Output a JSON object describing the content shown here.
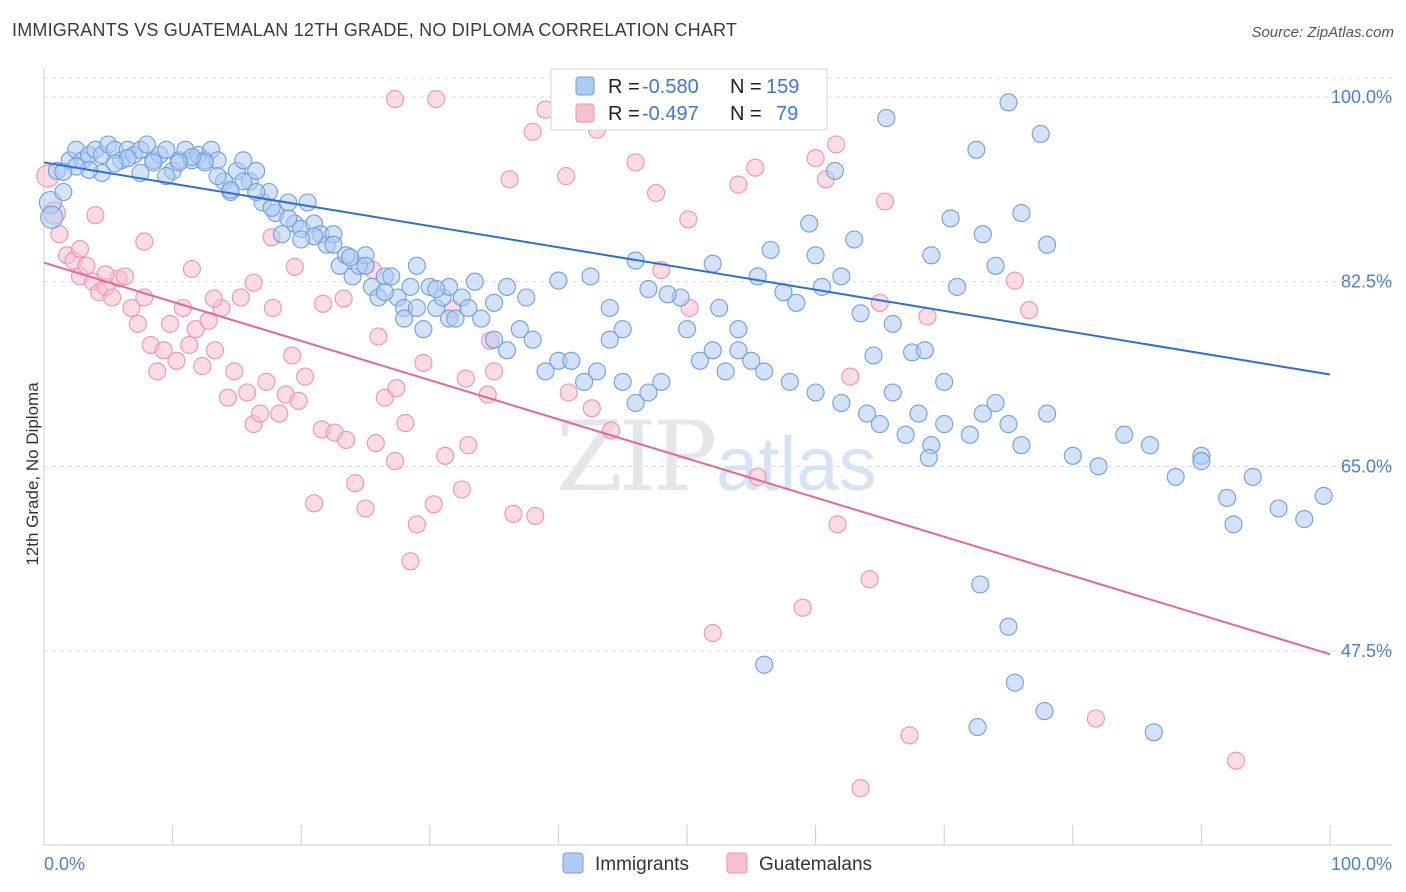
{
  "title": "IMMIGRANTS VS GUATEMALAN 12TH GRADE, NO DIPLOMA CORRELATION CHART",
  "source": "Source: ZipAtlas.com",
  "watermark": {
    "zip": "ZIP",
    "atlas": "atlas"
  },
  "colors": {
    "immigrants_fill": "#aecbf2",
    "immigrants_stroke": "#6f9fdc",
    "immigrants_line": "#2f6fd0",
    "guatemalans_fill": "#f8bfd0",
    "guatemalans_stroke": "#ec93b0",
    "guatemalans_line": "#e06a94",
    "grid": "#d6dbe3"
  },
  "chart_data": {
    "type": "scatter",
    "title": "IMMIGRANTS VS GUATEMALAN 12TH GRADE, NO DIPLOMA CORRELATION CHART",
    "xlabel": "",
    "ylabel": "12th Grade, No Diploma",
    "xlim": [
      0,
      100
    ],
    "ylim": [
      30,
      100
    ],
    "x_tick_labels": [
      "0.0%",
      "100.0%"
    ],
    "y_ticks": [
      47.5,
      65.0,
      82.5,
      100.0
    ],
    "y_tick_labels": [
      "47.5%",
      "65.0%",
      "82.5%",
      "100.0%"
    ],
    "grid": true,
    "legend": {
      "placement": "top-center",
      "entries": [
        {
          "r_label": "R =",
          "r_value": "-0.580",
          "n_label": "N =",
          "n_value": "159"
        },
        {
          "r_label": "R =",
          "r_value": "-0.497",
          "n_label": "N =",
          "n_value": "79"
        }
      ]
    },
    "series": [
      {
        "name": "Immigrants",
        "trend": {
          "x": [
            0,
            100
          ],
          "y": [
            93.8,
            73.7
          ]
        },
        "points": [
          [
            0.5,
            90
          ],
          [
            1,
            93
          ],
          [
            1.5,
            91
          ],
          [
            2,
            94
          ],
          [
            2.5,
            95
          ],
          [
            3,
            94
          ],
          [
            3.5,
            94.5
          ],
          [
            4,
            95
          ],
          [
            4.5,
            94.5
          ],
          [
            5,
            95.5
          ],
          [
            5.5,
            95
          ],
          [
            6,
            94
          ],
          [
            6.5,
            95
          ],
          [
            7,
            94.5
          ],
          [
            7.5,
            95
          ],
          [
            8,
            95.5
          ],
          [
            8.5,
            94
          ],
          [
            9,
            94.5
          ],
          [
            9.5,
            95
          ],
          [
            10,
            93
          ],
          [
            10.5,
            94
          ],
          [
            11,
            95
          ],
          [
            11.5,
            94
          ],
          [
            12,
            94.5
          ],
          [
            12.5,
            94
          ],
          [
            13,
            95
          ],
          [
            13.5,
            94
          ],
          [
            14,
            92
          ],
          [
            14.5,
            91
          ],
          [
            15,
            93
          ],
          [
            15.5,
            94
          ],
          [
            16,
            92
          ],
          [
            16.5,
            93
          ],
          [
            17,
            90
          ],
          [
            17.5,
            91
          ],
          [
            18,
            89
          ],
          [
            18.5,
            87
          ],
          [
            19,
            90
          ],
          [
            19.5,
            88
          ],
          [
            20,
            87.5
          ],
          [
            20.5,
            90
          ],
          [
            21,
            88
          ],
          [
            21.5,
            87
          ],
          [
            22,
            86
          ],
          [
            22.5,
            87
          ],
          [
            23,
            84
          ],
          [
            23.5,
            85
          ],
          [
            24,
            83
          ],
          [
            24.5,
            84
          ],
          [
            25,
            85
          ],
          [
            25.5,
            82
          ],
          [
            26,
            81
          ],
          [
            26.5,
            83
          ],
          [
            27,
            83
          ],
          [
            27.5,
            81
          ],
          [
            28,
            80
          ],
          [
            28.5,
            82
          ],
          [
            29,
            80
          ],
          [
            29.5,
            78
          ],
          [
            30,
            82
          ],
          [
            30.5,
            80
          ],
          [
            31,
            81
          ],
          [
            31.5,
            79
          ],
          [
            32,
            79
          ],
          [
            32.5,
            81
          ],
          [
            33,
            80
          ],
          [
            34,
            79
          ],
          [
            35,
            77
          ],
          [
            36,
            76
          ],
          [
            37,
            78
          ],
          [
            38,
            77
          ],
          [
            39,
            74
          ],
          [
            40,
            75
          ],
          [
            41,
            75
          ],
          [
            42,
            73
          ],
          [
            43,
            74
          ],
          [
            44,
            77
          ],
          [
            45,
            73
          ],
          [
            46,
            71
          ],
          [
            47,
            72
          ],
          [
            48,
            73
          ],
          [
            50,
            78
          ],
          [
            51,
            75
          ],
          [
            52,
            76
          ],
          [
            53,
            74
          ],
          [
            54,
            76
          ],
          [
            55,
            75
          ],
          [
            56,
            74
          ],
          [
            58,
            73
          ],
          [
            60,
            72
          ],
          [
            62,
            71
          ],
          [
            64,
            70
          ],
          [
            65,
            69
          ],
          [
            66,
            72
          ],
          [
            67,
            68
          ],
          [
            68,
            70
          ],
          [
            69,
            67
          ],
          [
            70,
            69
          ],
          [
            72,
            68
          ],
          [
            73,
            70
          ],
          [
            74,
            71
          ],
          [
            75,
            69
          ],
          [
            76,
            67
          ],
          [
            78,
            70
          ],
          [
            80,
            66
          ],
          [
            82,
            65
          ],
          [
            84,
            68
          ],
          [
            86,
            67
          ],
          [
            88,
            64
          ],
          [
            90,
            66
          ],
          [
            92,
            62
          ],
          [
            94,
            64
          ],
          [
            96,
            61
          ],
          [
            98,
            60
          ],
          [
            99.5,
            62.2
          ],
          [
            61.5,
            93
          ],
          [
            65.5,
            98
          ],
          [
            70.5,
            88.5
          ],
          [
            72.5,
            95
          ],
          [
            75,
            99.5
          ],
          [
            77.5,
            96.5
          ],
          [
            73,
            87
          ],
          [
            76,
            89
          ],
          [
            58.5,
            80.5
          ],
          [
            60,
            85
          ],
          [
            56.5,
            85.5
          ],
          [
            59.5,
            88
          ],
          [
            63,
            86.5
          ],
          [
            62,
            83
          ],
          [
            64.5,
            75.5
          ],
          [
            67.5,
            75.8
          ],
          [
            69,
            85
          ],
          [
            71,
            82
          ],
          [
            74,
            84
          ],
          [
            78,
            86
          ],
          [
            68.5,
            76
          ],
          [
            70,
            73
          ],
          [
            66,
            78.5
          ],
          [
            63.5,
            79.5
          ],
          [
            60.5,
            82
          ],
          [
            57.5,
            81.5
          ],
          [
            55.5,
            83
          ],
          [
            54,
            78
          ],
          [
            52.5,
            80
          ],
          [
            52,
            84.2
          ],
          [
            49.5,
            81
          ],
          [
            48.5,
            81.3
          ],
          [
            47,
            81.8
          ],
          [
            46,
            84.5
          ],
          [
            45,
            78
          ],
          [
            44,
            80
          ],
          [
            42.5,
            83
          ],
          [
            40,
            82.6
          ],
          [
            37.5,
            81
          ],
          [
            36,
            82
          ],
          [
            35,
            80.5
          ],
          [
            33.5,
            82.5
          ],
          [
            31.5,
            82
          ],
          [
            30.5,
            81.8
          ],
          [
            29,
            84
          ],
          [
            28,
            79
          ],
          [
            26.5,
            81.5
          ],
          [
            25,
            84
          ],
          [
            23.8,
            84.8
          ],
          [
            22.5,
            86
          ],
          [
            21,
            86.8
          ],
          [
            20,
            86.5
          ],
          [
            19,
            88.5
          ],
          [
            17.7,
            89.5
          ],
          [
            16.5,
            91
          ],
          [
            15.5,
            92
          ],
          [
            14.5,
            91.2
          ],
          [
            13.5,
            92.5
          ],
          [
            12.5,
            93.8
          ],
          [
            11.5,
            94.3
          ],
          [
            10.5,
            93.8
          ],
          [
            9.5,
            92.5
          ],
          [
            8.5,
            93.8
          ],
          [
            7.5,
            92.8
          ],
          [
            6.5,
            94.2
          ],
          [
            5.5,
            93.7
          ],
          [
            4.5,
            92.8
          ],
          [
            3.5,
            93.1
          ],
          [
            2.5,
            93.4
          ],
          [
            1.5,
            92.9
          ],
          [
            0.6,
            88.6
          ],
          [
            56,
            46.2
          ],
          [
            68.8,
            65.8
          ],
          [
            72.8,
            53.8
          ],
          [
            75,
            49.8
          ],
          [
            77.8,
            41.8
          ],
          [
            72.6,
            40.3
          ],
          [
            75.5,
            44.5
          ],
          [
            86.3,
            39.8
          ],
          [
            90,
            65.5
          ],
          [
            92.5,
            59.5
          ]
        ]
      },
      {
        "name": "Guatemalans",
        "trend": {
          "x": [
            0,
            100
          ],
          "y": [
            84.3,
            47.2
          ]
        },
        "points": [
          [
            0.3,
            92.5
          ],
          [
            0.8,
            89
          ],
          [
            1.2,
            87
          ],
          [
            1.8,
            85
          ],
          [
            2.3,
            84.5
          ],
          [
            2.8,
            83
          ],
          [
            3.3,
            84
          ],
          [
            3.8,
            82.5
          ],
          [
            4.3,
            81.5
          ],
          [
            4.8,
            82
          ],
          [
            5.3,
            81
          ],
          [
            5.8,
            82.8
          ],
          [
            6.3,
            83
          ],
          [
            6.8,
            80
          ],
          [
            7.3,
            78.5
          ],
          [
            7.8,
            81
          ],
          [
            8.3,
            76.5
          ],
          [
            8.8,
            74
          ],
          [
            9.3,
            76
          ],
          [
            9.8,
            78.5
          ],
          [
            10.3,
            75
          ],
          [
            10.8,
            80
          ],
          [
            11.3,
            76.5
          ],
          [
            11.8,
            78
          ],
          [
            12.3,
            74.5
          ],
          [
            12.8,
            78.8
          ],
          [
            13.3,
            76
          ],
          [
            13.8,
            80
          ],
          [
            14.3,
            71.5
          ],
          [
            14.8,
            74
          ],
          [
            15.3,
            81
          ],
          [
            15.8,
            72
          ],
          [
            16.3,
            69
          ],
          [
            16.8,
            70
          ],
          [
            17.3,
            73
          ],
          [
            17.8,
            80
          ],
          [
            18.3,
            70
          ],
          [
            18.8,
            71.8
          ],
          [
            19.3,
            75.5
          ],
          [
            19.8,
            71.2
          ],
          [
            20.3,
            73.5
          ],
          [
            21,
            61.5
          ],
          [
            21.6,
            68.5
          ],
          [
            22.6,
            68.2
          ],
          [
            23.5,
            67.5
          ],
          [
            24.2,
            63.4
          ],
          [
            25,
            61
          ],
          [
            25.8,
            67.2
          ],
          [
            26.5,
            71.5
          ],
          [
            27.3,
            65.5
          ],
          [
            28.5,
            56
          ],
          [
            29,
            59.5
          ],
          [
            30.3,
            61.4
          ],
          [
            31.2,
            66
          ],
          [
            32.5,
            62.8
          ],
          [
            33,
            67
          ],
          [
            34.5,
            71.8
          ],
          [
            35,
            74
          ],
          [
            36.5,
            60.5
          ],
          [
            38.2,
            60.3
          ],
          [
            40.8,
            72
          ],
          [
            42.6,
            70.5
          ],
          [
            44.1,
            68.4
          ],
          [
            48,
            83.6
          ],
          [
            50.2,
            80
          ],
          [
            52,
            49.2
          ],
          [
            55.5,
            64
          ],
          [
            59,
            51.6
          ],
          [
            61.7,
            59.5
          ],
          [
            63.5,
            34.5
          ],
          [
            62.7,
            73.5
          ],
          [
            68.7,
            79.2
          ],
          [
            65,
            80.5
          ],
          [
            67.3,
            39.5
          ],
          [
            64.2,
            54.3
          ],
          [
            2.8,
            85.6
          ],
          [
            4,
            88.8
          ],
          [
            4.8,
            83.2
          ],
          [
            7.8,
            86.3
          ],
          [
            11.5,
            83.7
          ],
          [
            13.2,
            80.9
          ],
          [
            16.3,
            82.4
          ],
          [
            17.7,
            86.7
          ],
          [
            19.5,
            83.9
          ],
          [
            21.7,
            80.4
          ],
          [
            23.3,
            80.9
          ],
          [
            25.6,
            83.6
          ],
          [
            26,
            77.3
          ],
          [
            27.4,
            72.4
          ],
          [
            28.1,
            69.1
          ],
          [
            29.5,
            74.8
          ],
          [
            31.8,
            79.9
          ],
          [
            32.8,
            73.3
          ],
          [
            34.7,
            76.9
          ],
          [
            36.2,
            92.2
          ],
          [
            38,
            96.7
          ],
          [
            39,
            98.8
          ],
          [
            40.6,
            92.5
          ],
          [
            43,
            96.9
          ],
          [
            46,
            93.8
          ],
          [
            47.6,
            90.9
          ],
          [
            50.1,
            88.4
          ],
          [
            54,
            91.7
          ],
          [
            55.3,
            93.3
          ],
          [
            60,
            94.2
          ],
          [
            60.8,
            92.2
          ],
          [
            61.6,
            95.5
          ],
          [
            65.4,
            90.1
          ],
          [
            27.3,
            99.8
          ],
          [
            30.5,
            99.8
          ],
          [
            59.5,
            99.8
          ],
          [
            75.5,
            82.6
          ],
          [
            76.6,
            79.8
          ],
          [
            81.8,
            41.1
          ],
          [
            92.7,
            37.1
          ]
        ]
      }
    ]
  },
  "bottom_legend": {
    "immigrants": "Immigrants",
    "guatemalans": "Guatemalans"
  }
}
